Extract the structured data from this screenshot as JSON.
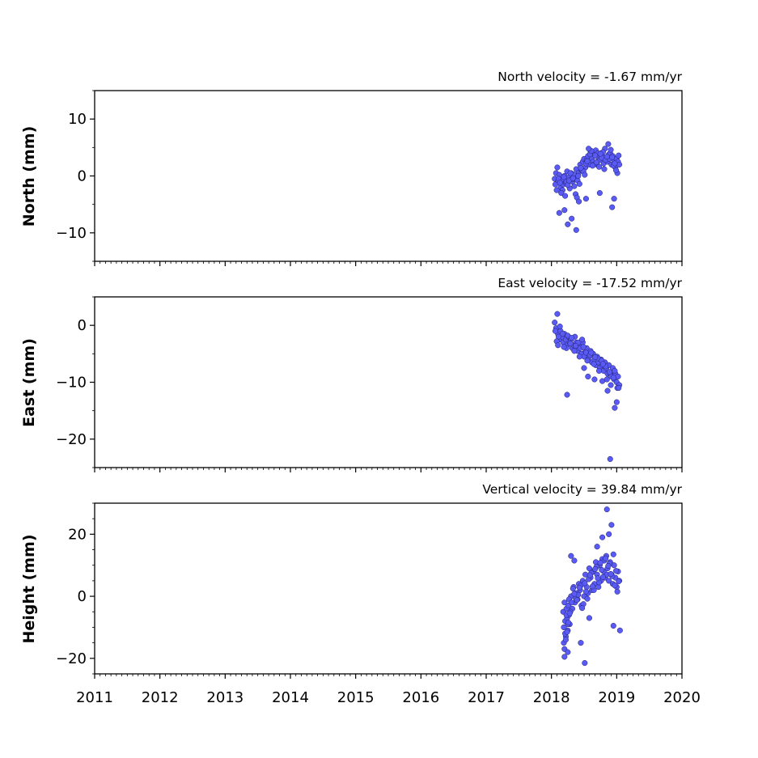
{
  "chart_data": [
    {
      "type": "scatter",
      "title": "North velocity = -1.67 mm/yr",
      "ylabel": "North (mm)",
      "xlim": [
        2011,
        2020
      ],
      "ylim": [
        -15,
        15
      ],
      "xticks": [
        2011,
        2012,
        2013,
        2014,
        2015,
        2016,
        2017,
        2018,
        2019,
        2020
      ],
      "yticks": [
        -10,
        0,
        10
      ],
      "xtick_labels_shown": false,
      "point_color": "#5a5af5",
      "series": [
        {
          "x": [
            2018.05,
            2018.07,
            2018.09,
            2018.1,
            2018.12,
            2018.14,
            2018.16,
            2018.18,
            2018.2,
            2018.22,
            2018.24,
            2018.26,
            2018.28,
            2018.3,
            2018.32,
            2018.34,
            2018.36,
            2018.38,
            2018.4,
            2018.42,
            2018.44,
            2018.46,
            2018.48,
            2018.5,
            2018.52,
            2018.54,
            2018.56,
            2018.58,
            2018.6,
            2018.62,
            2018.64,
            2018.66,
            2018.68,
            2018.7,
            2018.72,
            2018.74,
            2018.76,
            2018.78,
            2018.8,
            2018.82,
            2018.84,
            2018.86,
            2018.88,
            2018.9,
            2018.92,
            2018.94,
            2018.96,
            2018.98,
            2019.0,
            2019.02,
            2019.04,
            2018.06,
            2018.11,
            2018.17,
            2018.23,
            2018.29,
            2018.35,
            2018.41,
            2018.47,
            2018.53,
            2018.59,
            2018.65,
            2018.71,
            2018.77,
            2018.83,
            2018.89,
            2018.95,
            2019.01,
            2018.08,
            2018.13,
            2018.19,
            2018.25,
            2018.31,
            2018.37,
            2018.43,
            2018.49,
            2018.55,
            2018.61,
            2018.67,
            2018.73,
            2018.79,
            2018.85,
            2018.91,
            2018.97,
            2019.03,
            2018.15,
            2018.21,
            2018.27,
            2018.33,
            2018.39,
            2018.45,
            2018.51,
            2018.57,
            2018.63,
            2018.69,
            2018.75,
            2018.81,
            2018.87,
            2018.93,
            2018.99,
            2018.12,
            2018.2,
            2018.25,
            2018.31,
            2018.38,
            2018.42,
            2018.53,
            2018.74,
            2018.93,
            2018.96
          ],
          "y": [
            -0.5,
            0.5,
            1.5,
            -1.0,
            0.2,
            -2.0,
            -0.8,
            -1.5,
            0.0,
            -1.2,
            0.8,
            -0.3,
            -2.2,
            0.5,
            -1.0,
            0.3,
            -0.5,
            1.2,
            -0.8,
            0.6,
            2.0,
            1.0,
            2.5,
            3.0,
            1.5,
            2.8,
            3.5,
            2.0,
            4.2,
            3.0,
            2.5,
            3.8,
            4.5,
            2.0,
            3.2,
            2.8,
            4.0,
            3.5,
            2.2,
            4.8,
            3.0,
            2.5,
            3.8,
            4.0,
            2.0,
            3.5,
            2.8,
            1.5,
            3.0,
            2.5,
            2.0,
            -1.5,
            -0.5,
            -2.5,
            -1.0,
            0.5,
            -1.8,
            0.0,
            1.0,
            2.2,
            3.8,
            2.0,
            4.0,
            3.2,
            2.8,
            3.0,
            1.8,
            0.5,
            -2.5,
            -1.2,
            -0.2,
            -1.6,
            -0.6,
            -3.2,
            -1.4,
            0.8,
            2.6,
            4.4,
            3.6,
            1.6,
            4.2,
            3.4,
            4.6,
            2.2,
            3.6,
            -3.0,
            -3.5,
            -0.8,
            -0.4,
            -3.8,
            1.4,
            0.2,
            4.8,
            1.8,
            2.4,
            3.9,
            1.2,
            5.6,
            3.3,
            1.0,
            -6.5,
            -6.0,
            -8.5,
            -7.5,
            -9.5,
            -4.5,
            -4.0,
            -3.0,
            -5.5,
            -4.0
          ]
        }
      ]
    },
    {
      "type": "scatter",
      "title": "East velocity = -17.52 mm/yr",
      "ylabel": "East (mm)",
      "xlim": [
        2011,
        2020
      ],
      "ylim": [
        -25,
        5
      ],
      "xticks": [
        2011,
        2012,
        2013,
        2014,
        2015,
        2016,
        2017,
        2018,
        2019,
        2020
      ],
      "yticks": [
        -20,
        -10,
        0
      ],
      "xtick_labels_shown": false,
      "point_color": "#5a5af5",
      "series": [
        {
          "x": [
            2018.05,
            2018.07,
            2018.09,
            2018.1,
            2018.12,
            2018.14,
            2018.16,
            2018.18,
            2018.2,
            2018.22,
            2018.24,
            2018.26,
            2018.28,
            2018.3,
            2018.32,
            2018.34,
            2018.36,
            2018.38,
            2018.4,
            2018.42,
            2018.44,
            2018.46,
            2018.48,
            2018.5,
            2018.52,
            2018.54,
            2018.56,
            2018.58,
            2018.6,
            2018.62,
            2018.64,
            2018.66,
            2018.68,
            2018.7,
            2018.72,
            2018.74,
            2018.76,
            2018.78,
            2018.8,
            2018.82,
            2018.84,
            2018.86,
            2018.88,
            2018.9,
            2018.92,
            2018.94,
            2018.96,
            2018.98,
            2019.0,
            2019.02,
            2019.04,
            2018.06,
            2018.11,
            2018.17,
            2018.23,
            2018.29,
            2018.35,
            2018.41,
            2018.47,
            2018.53,
            2018.59,
            2018.65,
            2018.71,
            2018.77,
            2018.83,
            2018.89,
            2018.95,
            2019.01,
            2018.08,
            2018.13,
            2018.19,
            2018.25,
            2018.31,
            2018.37,
            2018.43,
            2018.49,
            2018.55,
            2018.61,
            2018.67,
            2018.73,
            2018.79,
            2018.85,
            2018.91,
            2018.97,
            2019.03,
            2018.1,
            2018.24,
            2018.5,
            2018.56,
            2018.66,
            2018.78,
            2018.86,
            2018.9,
            2018.97,
            2019.0
          ],
          "y": [
            0.5,
            -0.5,
            2.0,
            -1.5,
            -2.5,
            -1.0,
            -2.0,
            -3.0,
            -1.5,
            -2.5,
            -3.5,
            -2.0,
            -3.0,
            -2.5,
            -4.0,
            -3.5,
            -2.0,
            -3.0,
            -4.5,
            -3.5,
            -4.0,
            -5.0,
            -3.0,
            -5.5,
            -4.5,
            -4.0,
            -6.0,
            -5.5,
            -4.5,
            -6.5,
            -5.0,
            -6.0,
            -7.0,
            -5.5,
            -6.5,
            -7.5,
            -6.0,
            -7.0,
            -8.0,
            -6.5,
            -7.5,
            -8.5,
            -7.0,
            -8.5,
            -9.0,
            -7.5,
            -9.5,
            -8.5,
            -10.0,
            -9.0,
            -10.5,
            -1.0,
            -2.0,
            -1.5,
            -4.0,
            -3.2,
            -4.5,
            -3.0,
            -2.5,
            -4.8,
            -5.2,
            -6.8,
            -5.8,
            -6.2,
            -7.2,
            -8.2,
            -9.2,
            -11.0,
            -2.8,
            -0.2,
            -3.8,
            -1.8,
            -2.2,
            -3.6,
            -5.5,
            -3.8,
            -6.2,
            -4.8,
            -5.6,
            -8.0,
            -6.8,
            -9.5,
            -10.5,
            -8.0,
            -11.0,
            -3.5,
            -12.2,
            -7.5,
            -9.0,
            -9.5,
            -9.8,
            -11.5,
            -23.5,
            -14.5,
            -13.5
          ]
        }
      ]
    },
    {
      "type": "scatter",
      "title": "Vertical velocity = 39.84 mm/yr",
      "ylabel": "Height (mm)",
      "xlim": [
        2011,
        2020
      ],
      "ylim": [
        -25,
        30
      ],
      "xticks": [
        2011,
        2012,
        2013,
        2014,
        2015,
        2016,
        2017,
        2018,
        2019,
        2020
      ],
      "xtick_labels": [
        "2011",
        "2012",
        "2013",
        "2014",
        "2015",
        "2016",
        "2017",
        "2018",
        "2019",
        "2020"
      ],
      "yticks": [
        -20,
        0,
        20
      ],
      "xtick_labels_shown": true,
      "point_color": "#5a5af5",
      "series": [
        {
          "x": [
            2018.18,
            2018.19,
            2018.2,
            2018.21,
            2018.22,
            2018.23,
            2018.24,
            2018.25,
            2018.26,
            2018.27,
            2018.28,
            2018.3,
            2018.32,
            2018.34,
            2018.36,
            2018.38,
            2018.4,
            2018.42,
            2018.44,
            2018.46,
            2018.48,
            2018.5,
            2018.52,
            2018.54,
            2018.56,
            2018.58,
            2018.6,
            2018.62,
            2018.64,
            2018.66,
            2018.68,
            2018.7,
            2018.72,
            2018.74,
            2018.76,
            2018.78,
            2018.8,
            2018.82,
            2018.84,
            2018.86,
            2018.88,
            2018.9,
            2018.92,
            2018.94,
            2018.96,
            2018.98,
            2019.0,
            2019.02,
            2019.04,
            2018.19,
            2018.21,
            2018.23,
            2018.25,
            2018.27,
            2018.29,
            2018.33,
            2018.37,
            2018.41,
            2018.45,
            2018.49,
            2018.53,
            2018.57,
            2018.61,
            2018.65,
            2018.69,
            2018.73,
            2018.77,
            2018.81,
            2018.85,
            2018.89,
            2018.93,
            2018.97,
            2019.01,
            2018.2,
            2018.22,
            2018.24,
            2018.26,
            2018.28,
            2018.31,
            2018.35,
            2018.39,
            2018.43,
            2018.47,
            2018.51,
            2018.55,
            2018.59,
            2018.63,
            2018.67,
            2018.71,
            2018.75,
            2018.79,
            2018.83,
            2018.87,
            2018.91,
            2018.95,
            2018.99,
            2019.03,
            2018.2,
            2018.25,
            2018.3,
            2018.35,
            2018.45,
            2018.51,
            2018.58,
            2018.7,
            2018.78,
            2018.85,
            2018.88,
            2018.92,
            2018.95,
            2019.05
          ],
          "y": [
            -5.0,
            -10.0,
            -2.0,
            -8.0,
            -13.0,
            -4.0,
            -7.0,
            -11.0,
            -3.0,
            -6.0,
            -9.0,
            0.0,
            -4.0,
            3.0,
            -2.0,
            1.0,
            -1.0,
            4.0,
            2.0,
            -3.0,
            5.0,
            0.0,
            7.0,
            3.0,
            1.0,
            9.0,
            6.0,
            2.0,
            8.0,
            4.0,
            11.0,
            7.0,
            3.0,
            10.0,
            5.0,
            12.0,
            8.0,
            6.0,
            13.0,
            9.0,
            5.0,
            11.0,
            7.0,
            4.0,
            10.0,
            6.0,
            3.0,
            8.0,
            5.0,
            -15.0,
            -12.0,
            -6.0,
            -9.0,
            -1.0,
            -5.0,
            2.5,
            -0.5,
            0.5,
            3.5,
            -2.5,
            1.5,
            5.5,
            7.5,
            2.0,
            9.5,
            4.5,
            8.5,
            11.5,
            7.0,
            10.5,
            6.5,
            3.5,
            1.5,
            -17.0,
            -14.0,
            -11.5,
            -8.5,
            -5.5,
            -2.0,
            0.8,
            -1.2,
            2.8,
            -3.8,
            4.2,
            -0.8,
            6.8,
            3.2,
            8.8,
            5.8,
            10.8,
            6.2,
            12.2,
            9.8,
            7.2,
            13.5,
            8.2,
            4.8,
            -19.5,
            -18.0,
            13.0,
            11.5,
            -15.0,
            -21.5,
            -7.0,
            16.0,
            19.0,
            28.0,
            20.0,
            23.0,
            -9.5,
            -11.0
          ]
        }
      ]
    }
  ]
}
